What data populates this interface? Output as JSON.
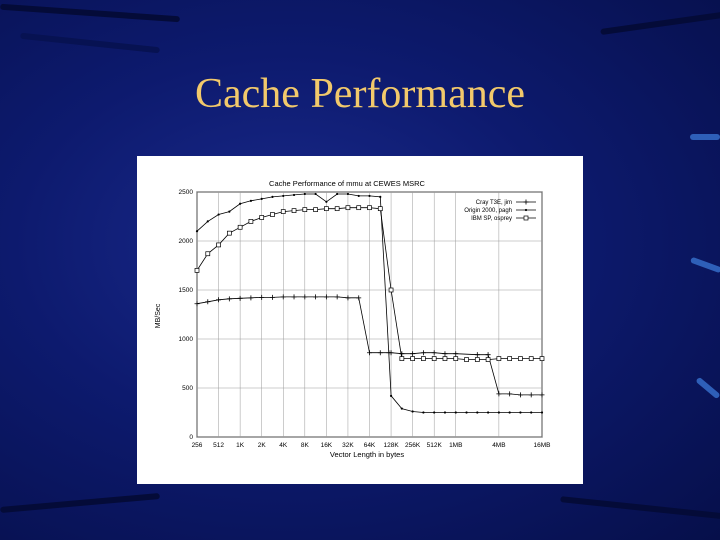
{
  "slide": {
    "title": "Cache Performance"
  },
  "chart_data": {
    "type": "line",
    "title": "Cache Performance of mmu at CEWES MSRC",
    "xlabel": "Vector Length in bytes",
    "ylabel": "MB/Sec",
    "ylim": [
      0,
      2500
    ],
    "yticks": [
      0,
      500,
      1000,
      1500,
      2000,
      2500
    ],
    "x_categories": [
      "256",
      "512",
      "1K",
      "2K",
      "4K",
      "8K",
      "16K",
      "32K",
      "64K",
      "128K",
      "256K",
      "512K",
      "1MB",
      "4MB",
      "16MB"
    ],
    "x_positions_log2kb": [
      -2,
      -1,
      0,
      1,
      2,
      3,
      4,
      5,
      6,
      7,
      8,
      9,
      10,
      12,
      14
    ],
    "legend": "top-right",
    "grid": true,
    "series": [
      {
        "name": "Cray T3E, jim",
        "marker": "plus",
        "x": [
          -2,
          -1.5,
          -1,
          -0.5,
          0,
          0.5,
          1,
          1.5,
          2,
          2.5,
          3,
          3.5,
          4,
          4.5,
          5,
          5.5,
          6,
          6.5,
          6.9,
          7,
          7.5,
          8,
          8.5,
          9,
          9.5,
          10,
          11,
          11.5,
          12,
          12.5,
          13,
          13.5,
          14
        ],
        "y": [
          1360,
          1380,
          1400,
          1410,
          1415,
          1420,
          1425,
          1425,
          1430,
          1430,
          1430,
          1430,
          1430,
          1430,
          1420,
          1420,
          860,
          860,
          860,
          860,
          850,
          850,
          860,
          860,
          850,
          850,
          840,
          840,
          440,
          440,
          430,
          430,
          430
        ]
      },
      {
        "name": "Origin 2000, pagh",
        "marker": "dot",
        "x": [
          -2,
          -1.5,
          -1,
          -0.5,
          0,
          0.5,
          1,
          1.5,
          2,
          2.5,
          3,
          3.5,
          4,
          4.5,
          5,
          5.5,
          6,
          6.5,
          7,
          7.5,
          8,
          8.5,
          9,
          9.5,
          10,
          10.5,
          11,
          11.5,
          12,
          12.5,
          13,
          13.5,
          14
        ],
        "y": [
          2100,
          2200,
          2270,
          2300,
          2380,
          2410,
          2430,
          2450,
          2460,
          2470,
          2480,
          2480,
          2400,
          2480,
          2480,
          2460,
          2460,
          2450,
          420,
          290,
          260,
          250,
          250,
          250,
          250,
          250,
          250,
          250,
          250,
          250,
          250,
          250,
          250
        ]
      },
      {
        "name": "IBM SP, osprey",
        "marker": "square",
        "x": [
          -2,
          -1.5,
          -1,
          -0.5,
          0,
          0.5,
          1,
          1.5,
          2,
          2.5,
          3,
          3.5,
          4,
          4.5,
          5,
          5.5,
          6,
          6.5,
          7,
          7.5,
          8,
          8.5,
          9,
          9.5,
          10,
          10.5,
          11,
          11.5,
          12,
          12.5,
          13,
          13.5,
          14
        ],
        "y": [
          1700,
          1870,
          1960,
          2080,
          2140,
          2200,
          2240,
          2270,
          2300,
          2310,
          2320,
          2320,
          2330,
          2330,
          2340,
          2340,
          2340,
          2330,
          1500,
          800,
          800,
          800,
          800,
          800,
          800,
          790,
          790,
          790,
          800,
          800,
          800,
          800,
          800
        ]
      }
    ]
  }
}
